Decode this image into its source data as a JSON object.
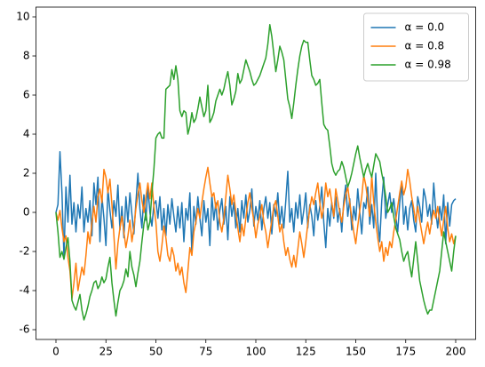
{
  "chart_data": {
    "type": "line",
    "x": [
      0,
      1,
      2,
      3,
      4,
      5,
      6,
      7,
      8,
      9,
      10,
      11,
      12,
      13,
      14,
      15,
      16,
      17,
      18,
      19,
      20,
      21,
      22,
      23,
      24,
      25,
      26,
      27,
      28,
      29,
      30,
      31,
      32,
      33,
      34,
      35,
      36,
      37,
      38,
      39,
      40,
      41,
      42,
      43,
      44,
      45,
      46,
      47,
      48,
      49,
      50,
      51,
      52,
      53,
      54,
      55,
      56,
      57,
      58,
      59,
      60,
      61,
      62,
      63,
      64,
      65,
      66,
      67,
      68,
      69,
      70,
      71,
      72,
      73,
      74,
      75,
      76,
      77,
      78,
      79,
      80,
      81,
      82,
      83,
      84,
      85,
      86,
      87,
      88,
      89,
      90,
      91,
      92,
      93,
      94,
      95,
      96,
      97,
      98,
      99,
      100,
      101,
      102,
      103,
      104,
      105,
      106,
      107,
      108,
      109,
      110,
      111,
      112,
      113,
      114,
      115,
      116,
      117,
      118,
      119,
      120,
      121,
      122,
      123,
      124,
      125,
      126,
      127,
      128,
      129,
      130,
      131,
      132,
      133,
      134,
      135,
      136,
      137,
      138,
      139,
      140,
      141,
      142,
      143,
      144,
      145,
      146,
      147,
      148,
      149,
      150,
      151,
      152,
      153,
      154,
      155,
      156,
      157,
      158,
      159,
      160,
      161,
      162,
      163,
      164,
      165,
      166,
      167,
      168,
      169,
      170,
      171,
      172,
      173,
      174,
      175,
      176,
      177,
      178,
      179,
      180,
      181,
      182,
      183,
      184,
      185,
      186,
      187,
      188,
      189,
      190,
      191,
      192,
      193,
      194,
      195,
      196,
      197,
      198,
      199,
      200
    ],
    "series": [
      {
        "name": "α = 0.0",
        "color": "#1f77b4",
        "values": [
          0,
          0.4,
          3.1,
          1.0,
          -2.3,
          1.3,
          -0.5,
          1.9,
          -0.6,
          0.5,
          -1.0,
          0.4,
          -0.3,
          1.3,
          -1.0,
          0.2,
          -0.5,
          0.6,
          -1.2,
          1.5,
          0.4,
          1.8,
          -1.5,
          0.8,
          -0.3,
          -1.7,
          1.2,
          0.1,
          -0.8,
          0.6,
          -0.2,
          1.4,
          -0.9,
          0.3,
          -1.3,
          0.8,
          -0.5,
          1.0,
          -0.1,
          -1.1,
          0.5,
          2.0,
          0.2,
          -0.8,
          0.9,
          -0.4,
          1.3,
          0.0,
          -0.7,
          0.4,
          0.6,
          -0.3,
          0.8,
          -0.9,
          0.2,
          -1.2,
          0.4,
          -0.6,
          0.7,
          -0.2,
          -1.0,
          0.3,
          -0.8,
          0.5,
          -1.5,
          0.2,
          -0.4,
          1.0,
          -2.1,
          0.3,
          -0.6,
          0.8,
          -0.3,
          -1.2,
          0.6,
          -0.5,
          0.2,
          -1.7,
          0.9,
          -0.4,
          0.5,
          -0.9,
          0.1,
          0.7,
          -0.6,
          0.3,
          -1.4,
          0.8,
          -0.2,
          0.5,
          -0.8,
          0.2,
          -1.0,
          0.6,
          -0.3,
          0.9,
          -0.5,
          0.1,
          1.2,
          -0.7,
          0.3,
          -0.4,
          0.6,
          -0.9,
          0.2,
          0.8,
          -0.3,
          0.5,
          -1.1,
          0.4,
          -0.2,
          1.0,
          -0.6,
          0.3,
          -0.8,
          0.6,
          2.1,
          -0.5,
          0.2,
          -1.0,
          0.5,
          -0.3,
          0.9,
          -0.6,
          0.1,
          1.0,
          -0.8,
          0.4,
          -0.2,
          -1.2,
          0.6,
          -0.4,
          0.3,
          1.3,
          -0.5,
          -1.8,
          0.2,
          -0.7,
          0.5,
          -0.3,
          0.8,
          -0.5,
          0.2,
          -1.0,
          0.6,
          1.4,
          -0.2,
          0.7,
          -0.9,
          0.3,
          -0.4,
          1.2,
          0.0,
          -1.1,
          0.5,
          0.2,
          1.3,
          -0.6,
          0.4,
          -0.8,
          2.0,
          -0.5,
          -1.5,
          0.6,
          1.8,
          -0.3,
          0.4,
          1.0,
          0.0,
          0.7,
          -0.2,
          -1.0,
          0.5,
          1.5,
          -0.6,
          0.3,
          -0.9,
          0.2,
          0.6,
          -0.4,
          -1.0,
          0.8,
          0.3,
          -0.5,
          1.2,
          0.7,
          -0.2,
          0.4,
          -0.6,
          1.5,
          0.1,
          -0.8,
          0.3,
          -0.4,
          0.9,
          -1.6,
          0.5,
          -0.7,
          0.4,
          0.6,
          0.7
        ]
      },
      {
        "name": "α = 0.8",
        "color": "#ff7f0e",
        "values": [
          0,
          -0.4,
          0.1,
          -0.8,
          -1.5,
          -1.2,
          -2.3,
          -3.0,
          -4.4,
          -3.6,
          -2.6,
          -4.0,
          -3.4,
          -2.8,
          -3.2,
          -2.2,
          -1.0,
          -1.6,
          -0.5,
          0.3,
          -0.5,
          0.8,
          1.2,
          0.5,
          2.2,
          1.8,
          1.0,
          1.7,
          0.4,
          -1.2,
          -2.9,
          -1.6,
          -0.8,
          -0.2,
          -1.0,
          -1.8,
          -1.2,
          -0.4,
          -1.5,
          -0.8,
          0.2,
          0.9,
          1.5,
          0.6,
          0.0,
          0.8,
          1.5,
          0.7,
          1.5,
          0.3,
          -0.5,
          -2.0,
          -2.5,
          -1.7,
          -0.7,
          -1.3,
          -2.2,
          -2.5,
          -1.8,
          -2.2,
          -3.0,
          -2.6,
          -3.2,
          -2.8,
          -3.6,
          -4.1,
          -3.0,
          -1.8,
          -2.2,
          -1.0,
          -0.5,
          0.2,
          -0.3,
          0.5,
          1.2,
          1.8,
          2.3,
          1.5,
          0.8,
          1.0,
          0.2,
          0.6,
          -0.5,
          -1.0,
          -0.3,
          0.8,
          1.9,
          1.2,
          0.4,
          0.9,
          0.0,
          -0.8,
          -1.5,
          -0.6,
          -1.2,
          -0.3,
          0.5,
          1.0,
          0.2,
          -0.4,
          -1.3,
          -0.6,
          -0.2,
          0.4,
          -0.5,
          -1.0,
          -1.8,
          -1.1,
          -0.4,
          0.3,
          0.6,
          -0.2,
          -1.0,
          -0.6,
          -1.5,
          -2.2,
          -1.8,
          -2.4,
          -2.8,
          -2.2,
          -2.8,
          -1.9,
          -1.0,
          -1.6,
          -2.3,
          -1.5,
          -0.6,
          0.2,
          0.8,
          0.4,
          1.0,
          1.5,
          0.5,
          -0.3,
          0.3,
          1.5,
          0.8,
          1.2,
          0.5,
          -0.2,
          1.2,
          0.6,
          0.0,
          -0.5,
          0.3,
          0.9,
          1.3,
          0.5,
          -0.3,
          -1.0,
          -1.6,
          -0.7,
          0.1,
          0.8,
          1.9,
          1.4,
          0.6,
          -0.2,
          1.9,
          0.5,
          -0.5,
          -1.3,
          -2.0,
          -1.5,
          -2.5,
          -1.8,
          -2.2,
          -1.5,
          -1.8,
          -1.0,
          -0.4,
          0.3,
          1.0,
          1.6,
          0.9,
          1.3,
          2.2,
          1.6,
          0.8,
          0.2,
          -0.5,
          0.3,
          -0.4,
          -1.0,
          -1.6,
          -1.0,
          -0.5,
          -1.1,
          -0.4,
          0.1,
          -0.3,
          0.3,
          -0.5,
          -1.2,
          -0.4,
          0.3,
          -0.8,
          -1.5,
          -1.1,
          -1.6,
          -1.2
        ]
      },
      {
        "name": "α = 0.98",
        "color": "#2ca02c",
        "values": [
          0,
          -1.0,
          -2.3,
          -2.0,
          -2.4,
          -1.8,
          -1.3,
          -2.5,
          -4.5,
          -4.8,
          -5.0,
          -4.6,
          -4.2,
          -5.0,
          -5.5,
          -5.2,
          -4.8,
          -4.3,
          -4.0,
          -3.6,
          -3.5,
          -3.9,
          -3.7,
          -3.3,
          -3.6,
          -3.4,
          -2.8,
          -2.3,
          -3.6,
          -4.5,
          -5.3,
          -4.6,
          -4.0,
          -3.8,
          -3.5,
          -2.9,
          -3.3,
          -2.0,
          -2.8,
          -3.2,
          -3.8,
          -3.1,
          -2.5,
          -1.5,
          -0.6,
          0.0,
          -0.9,
          -0.5,
          1.0,
          2.2,
          3.8,
          4.0,
          4.1,
          3.8,
          3.8,
          6.3,
          6.4,
          6.5,
          7.3,
          6.8,
          7.5,
          6.8,
          5.2,
          4.9,
          5.2,
          5.1,
          4.0,
          4.4,
          5.1,
          4.6,
          4.8,
          5.3,
          5.9,
          5.4,
          4.9,
          5.2,
          6.5,
          4.6,
          4.8,
          5.1,
          5.7,
          6.0,
          6.3,
          6.0,
          6.3,
          6.8,
          7.2,
          6.5,
          5.5,
          5.8,
          6.2,
          7.1,
          6.6,
          6.8,
          7.3,
          7.8,
          7.5,
          7.2,
          6.8,
          6.5,
          6.6,
          6.8,
          7.0,
          7.3,
          7.6,
          7.9,
          8.6,
          9.6,
          9.0,
          8.1,
          7.2,
          7.8,
          8.5,
          8.2,
          7.8,
          6.8,
          5.8,
          5.4,
          4.8,
          5.6,
          6.5,
          7.3,
          8.0,
          8.5,
          8.8,
          8.7,
          8.7,
          7.8,
          7.0,
          6.8,
          6.5,
          6.6,
          6.8,
          5.6,
          4.5,
          4.3,
          4.2,
          3.4,
          2.5,
          2.1,
          1.9,
          2.1,
          2.2,
          2.6,
          2.3,
          1.8,
          1.3,
          1.6,
          2.0,
          2.5,
          3.0,
          3.4,
          2.8,
          2.3,
          1.8,
          2.2,
          2.5,
          2.1,
          1.8,
          2.4,
          3.0,
          2.8,
          2.6,
          2.0,
          1.5,
          0.8,
          0.0,
          0.2,
          0.5,
          -0.2,
          -0.8,
          -1.1,
          -1.4,
          -2.0,
          -2.5,
          -2.2,
          -2.0,
          -2.7,
          -3.3,
          -2.4,
          -1.5,
          -2.5,
          -3.5,
          -4.0,
          -4.5,
          -4.9,
          -5.2,
          -5.0,
          -5.0,
          -4.5,
          -4.0,
          -3.5,
          -3.0,
          -2.0,
          -1.0,
          -1.5,
          -2.0,
          -2.5,
          -3.0,
          -2.0,
          -1.2
        ]
      }
    ],
    "xlim": [
      -10,
      210
    ],
    "xticks": [
      0,
      25,
      50,
      75,
      100,
      125,
      150,
      175,
      200
    ],
    "ylim": [
      -6.5,
      10.5
    ],
    "yticks": [
      -6,
      -4,
      -2,
      0,
      2,
      4,
      6,
      8,
      10
    ],
    "grid": false,
    "legend": "upper right"
  }
}
